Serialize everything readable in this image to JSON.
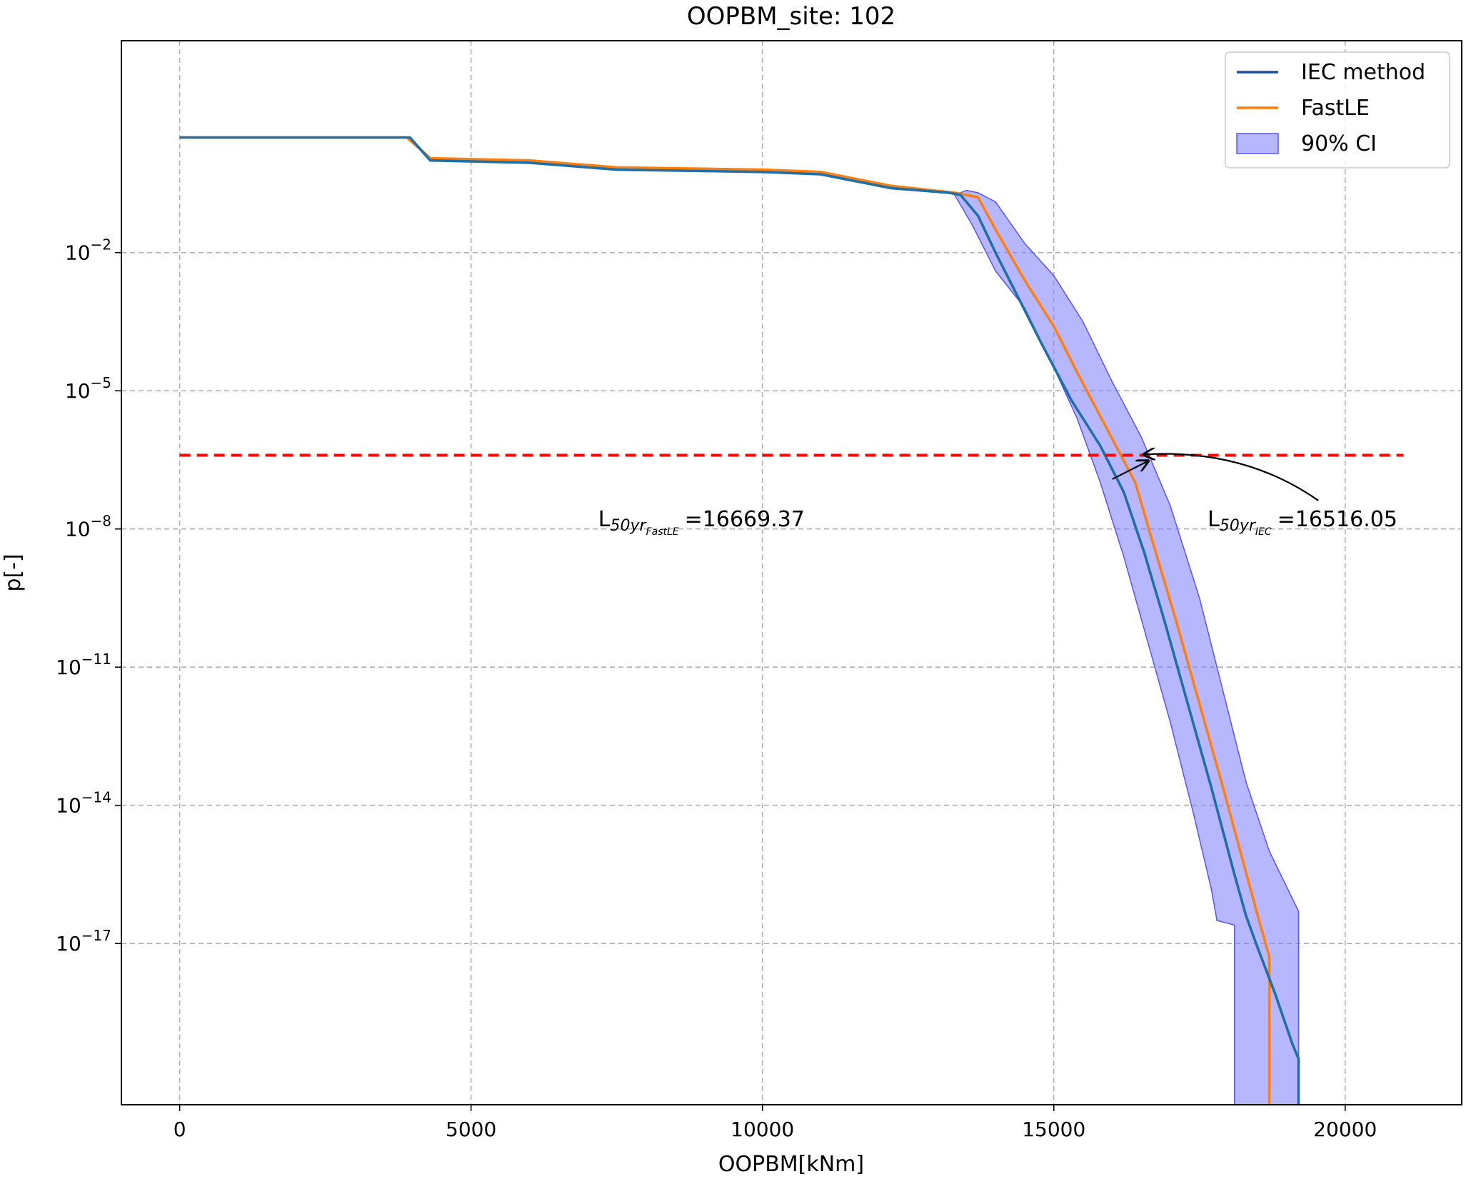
{
  "chart_data": {
    "type": "line",
    "title": "OOPBM_site: 102",
    "xlabel": "OOPBM[kNm]",
    "ylabel": "p[-]",
    "xlim": [
      -1000,
      22000
    ],
    "ylim_log10": [
      -20.5,
      2.6
    ],
    "yscale": "log",
    "grid": true,
    "grid_style": "dashed",
    "x_ticks": [
      {
        "value": 0,
        "label": "0"
      },
      {
        "value": 5000,
        "label": "5000"
      },
      {
        "value": 10000,
        "label": "10000"
      },
      {
        "value": 15000,
        "label": "15000"
      },
      {
        "value": 20000,
        "label": "20000"
      }
    ],
    "y_ticks": [
      {
        "exp": -2,
        "base": "10",
        "sup": "−2"
      },
      {
        "exp": -5,
        "base": "10",
        "sup": "−5"
      },
      {
        "exp": -8,
        "base": "10",
        "sup": "−8"
      },
      {
        "exp": -11,
        "base": "10",
        "sup": "−11"
      },
      {
        "exp": -14,
        "base": "10",
        "sup": "−14"
      },
      {
        "exp": -17,
        "base": "10",
        "sup": "−17"
      }
    ],
    "legend_position": "top-right",
    "legend": [
      {
        "label": "IEC method",
        "kind": "line",
        "color": "#1f4e99"
      },
      {
        "label": "FastLE",
        "kind": "line",
        "color": "#ff7f0e"
      },
      {
        "label": "90% CI",
        "kind": "band",
        "color": "#7b7bff"
      }
    ],
    "series": [
      {
        "name": "IEC method",
        "color": "#1f6fa8",
        "points": [
          [
            0,
            0.5
          ],
          [
            3950,
            0.5
          ],
          [
            4300,
            0.0
          ],
          [
            6000,
            -0.05
          ],
          [
            7500,
            -0.2
          ],
          [
            10000,
            -0.25
          ],
          [
            11000,
            -0.3
          ],
          [
            12200,
            -0.6
          ],
          [
            13200,
            -0.7
          ],
          [
            13400,
            -0.75
          ],
          [
            13700,
            -1.2
          ],
          [
            14000,
            -2.0
          ],
          [
            14400,
            -3.0
          ],
          [
            14800,
            -4.0
          ],
          [
            15300,
            -5.2
          ],
          [
            15800,
            -6.2
          ],
          [
            16200,
            -7.2
          ],
          [
            16550,
            -8.5
          ],
          [
            16900,
            -10.0
          ],
          [
            17300,
            -11.8
          ],
          [
            17700,
            -13.6
          ],
          [
            18100,
            -15.5
          ],
          [
            18300,
            -16.4
          ],
          [
            18500,
            -17.1
          ],
          [
            18800,
            -18.1
          ],
          [
            19100,
            -19.2
          ],
          [
            19200,
            -19.5
          ],
          [
            19200,
            -20.5
          ]
        ]
      },
      {
        "name": "FastLE",
        "color": "#ff7f0e",
        "points": [
          [
            0,
            0.5
          ],
          [
            3900,
            0.5
          ],
          [
            4300,
            0.05
          ],
          [
            6000,
            0.0
          ],
          [
            7500,
            -0.15
          ],
          [
            10000,
            -0.2
          ],
          [
            11000,
            -0.25
          ],
          [
            12200,
            -0.55
          ],
          [
            13300,
            -0.7
          ],
          [
            13700,
            -0.8
          ],
          [
            14000,
            -1.5
          ],
          [
            14500,
            -2.6
          ],
          [
            15000,
            -3.6
          ],
          [
            15400,
            -4.6
          ],
          [
            15900,
            -5.8
          ],
          [
            16400,
            -7.0
          ],
          [
            16700,
            -8.3
          ],
          [
            17100,
            -10.0
          ],
          [
            17500,
            -11.8
          ],
          [
            17900,
            -13.6
          ],
          [
            18200,
            -15.0
          ],
          [
            18500,
            -16.4
          ],
          [
            18700,
            -17.3
          ],
          [
            18700,
            -20.5
          ]
        ]
      },
      {
        "name": "90% CI",
        "upper": [
          [
            13500,
            -0.65
          ],
          [
            13700,
            -0.7
          ],
          [
            14000,
            -0.9
          ],
          [
            14500,
            -1.8
          ],
          [
            15000,
            -2.5
          ],
          [
            15500,
            -3.5
          ],
          [
            16000,
            -4.8
          ],
          [
            16500,
            -6.0
          ],
          [
            17000,
            -7.5
          ],
          [
            17500,
            -9.5
          ],
          [
            17900,
            -11.5
          ],
          [
            18300,
            -13.5
          ],
          [
            18700,
            -15.0
          ],
          [
            19200,
            -16.3
          ],
          [
            19200,
            -20.5
          ]
        ],
        "lower": [
          [
            13300,
            -0.75
          ],
          [
            13600,
            -1.4
          ],
          [
            14000,
            -2.4
          ],
          [
            14500,
            -3.2
          ],
          [
            15000,
            -4.5
          ],
          [
            15400,
            -5.6
          ],
          [
            15800,
            -7.0
          ],
          [
            16200,
            -8.6
          ],
          [
            16600,
            -10.4
          ],
          [
            17000,
            -12.2
          ],
          [
            17400,
            -14.2
          ],
          [
            17700,
            -15.8
          ],
          [
            17800,
            -16.5
          ],
          [
            18100,
            -16.6
          ],
          [
            18100,
            -20.5
          ]
        ]
      }
    ],
    "threshold": {
      "y_log10": -6.4,
      "x_start": 0,
      "x_end": 21000,
      "color": "#ff0000"
    },
    "annotations": [
      {
        "id": "fastle",
        "base": "L",
        "sub": "50yr",
        "subsub": "FastLE",
        "value_text": "=16669.37",
        "target": [
          16669.37,
          -6.4
        ],
        "text_anchor": [
          13800,
          -7.6
        ],
        "curved": false
      },
      {
        "id": "iec",
        "base": "L",
        "sub": "50yr",
        "subsub": "IEC",
        "value_text": "=16516.05",
        "target": [
          16516.05,
          -6.4
        ],
        "text_anchor": [
          19600,
          -7.6
        ],
        "curved": true
      }
    ]
  }
}
